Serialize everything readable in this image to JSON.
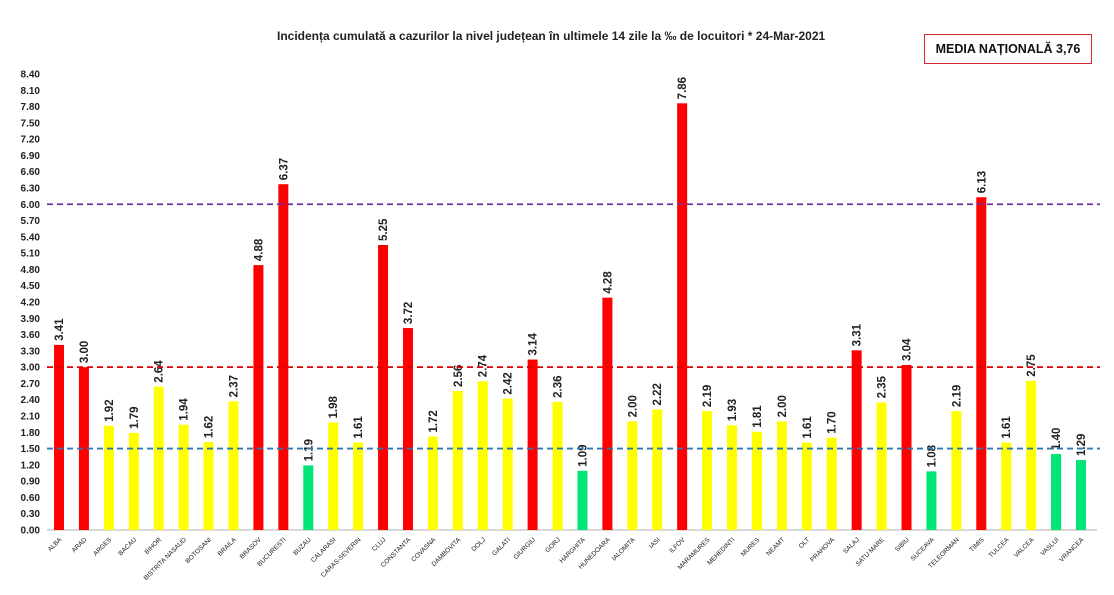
{
  "chart_data": {
    "type": "bar",
    "title": "Incidența cumulată a cazurilor la nivel județean în ultimele 14 zile la ‰ de locuitori *  24-Mar-2021",
    "annotation": "MEDIA NAȚIONALĂ 3,76",
    "ylim": [
      0,
      8.4
    ],
    "ytick_step": 0.3,
    "grid": false,
    "legend": "none",
    "categories": [
      "ALBA",
      "ARAD",
      "ARGES",
      "BACAU",
      "BIHOR",
      "BISTRITA NASAUD",
      "BOTOSANI",
      "BRAILA",
      "BRASOV",
      "BUCURESTI",
      "BUZAU",
      "CALARASI",
      "CARAS-SEVERIN",
      "CLUJ",
      "CONSTANTA",
      "COVASNA",
      "DAMBOVITA",
      "DOLJ",
      "GALATI",
      "GIURGIU",
      "GORJ",
      "HARGHITA",
      "HUNEDOARA",
      "IALOMITA",
      "IASI",
      "ILFOV",
      "MARAMURES",
      "MEHEDINTI",
      "MURES",
      "NEAMT",
      "OLT",
      "PRAHOVA",
      "SALAJ",
      "SATU MARE",
      "SIBIU",
      "SUCEAVA",
      "TELEORMAN",
      "TIMIS",
      "TULCEA",
      "VALCEA",
      "VASLUI",
      "VRANCEA"
    ],
    "values": [
      3.41,
      3.0,
      1.92,
      1.79,
      2.64,
      1.94,
      1.62,
      2.37,
      4.88,
      6.37,
      1.19,
      1.98,
      1.61,
      5.25,
      3.72,
      1.72,
      2.56,
      2.74,
      2.42,
      3.14,
      2.36,
      1.09,
      4.28,
      2.0,
      2.22,
      7.86,
      2.19,
      1.93,
      1.81,
      2.0,
      1.61,
      1.7,
      3.31,
      2.35,
      3.04,
      1.08,
      2.19,
      6.13,
      1.61,
      2.75,
      1.4,
      1.29
    ],
    "thresholds": [
      {
        "value": 6.0,
        "color": "#7030a0"
      },
      {
        "value": 3.0,
        "color": "#e00000"
      },
      {
        "value": 1.5,
        "color": "#2e75b6"
      }
    ],
    "colors": {
      "high": "#ff0000",
      "mid": "#ffff00",
      "low": "#00e676"
    }
  }
}
